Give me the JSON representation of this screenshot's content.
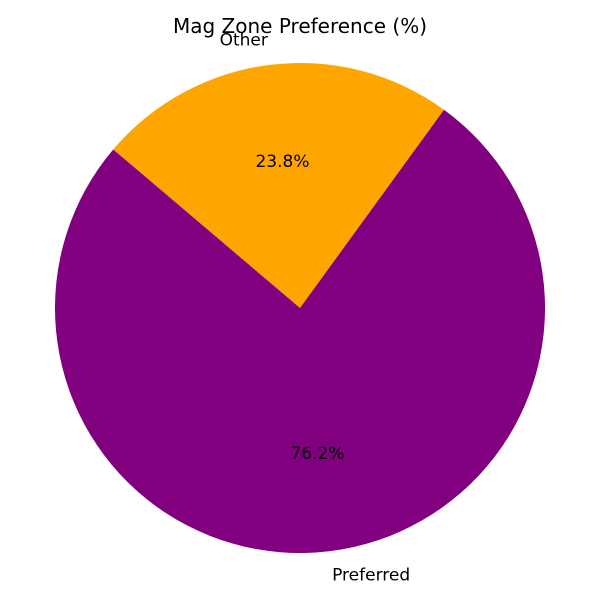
{
  "chart_data": {
    "type": "pie",
    "title": "Mag Zone Preference (%)",
    "categories": [
      "Other",
      "Preferred"
    ],
    "values": [
      23.8,
      76.2
    ],
    "value_labels": [
      "23.8%",
      "76.2%"
    ],
    "colors": [
      "#ffa500",
      "#800080"
    ],
    "legend": "none"
  }
}
